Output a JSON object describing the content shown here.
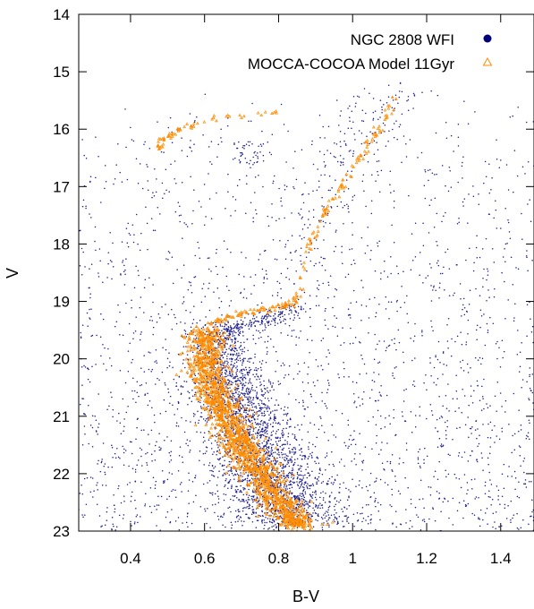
{
  "chart_data": {
    "type": "scatter",
    "title": "",
    "xlabel": "B-V",
    "ylabel": "V",
    "xlim": [
      0.26,
      1.49
    ],
    "ylim": [
      23,
      14
    ],
    "y_inverted": true,
    "x_ticks": [
      0.4,
      0.6,
      0.8,
      1,
      1.2,
      1.4
    ],
    "x_tick_labels": [
      "0.4",
      "0.6",
      "0.8",
      "1",
      "1.2",
      "1.4"
    ],
    "y_ticks": [
      14,
      15,
      16,
      17,
      18,
      19,
      20,
      21,
      22,
      23
    ],
    "y_tick_labels": [
      "14",
      "15",
      "16",
      "17",
      "18",
      "19",
      "20",
      "21",
      "22",
      "23"
    ],
    "grid": false,
    "legend_position": "top-right",
    "series": [
      {
        "name": "NGC 2808 WFI",
        "marker": "filled-circle",
        "color": "#1a1a8c",
        "features": {
          "main_sequence": {
            "V": [
              19.4,
              22.9
            ],
            "BV_at_top": 0.63,
            "BV_at_bottom": 0.84,
            "width": 0.07,
            "count": 2600
          },
          "subgiant_branch": {
            "V": [
              19.1,
              19.6
            ],
            "BV": [
              0.64,
              0.86
            ],
            "count": 220
          },
          "red_giant_branch": {
            "points": [
              [
                0.85,
                19.0
              ],
              [
                0.88,
                18.0
              ],
              [
                0.92,
                17.2
              ],
              [
                0.97,
                16.6
              ],
              [
                1.03,
                16.0
              ],
              [
                1.08,
                15.6
              ],
              [
                1.12,
                15.2
              ]
            ],
            "width": 0.05,
            "count": 180
          },
          "red_clump": {
            "BV": [
              0.68,
              0.76
            ],
            "V": [
              16.2,
              16.6
            ],
            "count": 40
          },
          "horizontal_branch": {
            "BV": [
              0.42,
              0.8
            ],
            "V": [
              15.8,
              16.4
            ],
            "count": 20
          },
          "field_stars": {
            "BV": [
              0.26,
              1.49
            ],
            "V": [
              15.2,
              23.0
            ],
            "count": 2200
          }
        }
      },
      {
        "name": "MOCCA-COCOA Model 11Gyr",
        "marker": "open-triangle",
        "color": "#ff8c00",
        "features": {
          "main_sequence": {
            "points": [
              [
                0.6,
                19.5
              ],
              [
                0.6,
                20.0
              ],
              [
                0.62,
                20.5
              ],
              [
                0.66,
                21.0
              ],
              [
                0.7,
                21.5
              ],
              [
                0.75,
                22.0
              ],
              [
                0.8,
                22.5
              ],
              [
                0.86,
                22.95
              ]
            ],
            "width": 0.05,
            "count": 1500
          },
          "subgiant_branch": {
            "points": [
              [
                0.61,
                19.4
              ],
              [
                0.7,
                19.2
              ],
              [
                0.8,
                19.1
              ],
              [
                0.85,
                19.0
              ]
            ],
            "count": 80
          },
          "red_giant_branch": {
            "points": [
              [
                0.85,
                19.0
              ],
              [
                0.87,
                18.3
              ],
              [
                0.9,
                17.7
              ],
              [
                0.94,
                17.3
              ],
              [
                0.97,
                17.0
              ],
              [
                1.01,
                16.6
              ],
              [
                1.05,
                16.2
              ],
              [
                1.09,
                15.8
              ],
              [
                1.11,
                15.4
              ]
            ],
            "count": 110
          },
          "horizontal_branch": {
            "points": [
              [
                0.48,
                16.2
              ],
              [
                0.55,
                15.95
              ],
              [
                0.65,
                15.8
              ],
              [
                0.75,
                15.72
              ],
              [
                0.8,
                15.7
              ]
            ],
            "count": 45
          },
          "blue_hb_clump": {
            "BV": [
              0.47,
              0.49
            ],
            "V": [
              16.15,
              16.35
            ],
            "count": 15
          }
        }
      }
    ]
  }
}
